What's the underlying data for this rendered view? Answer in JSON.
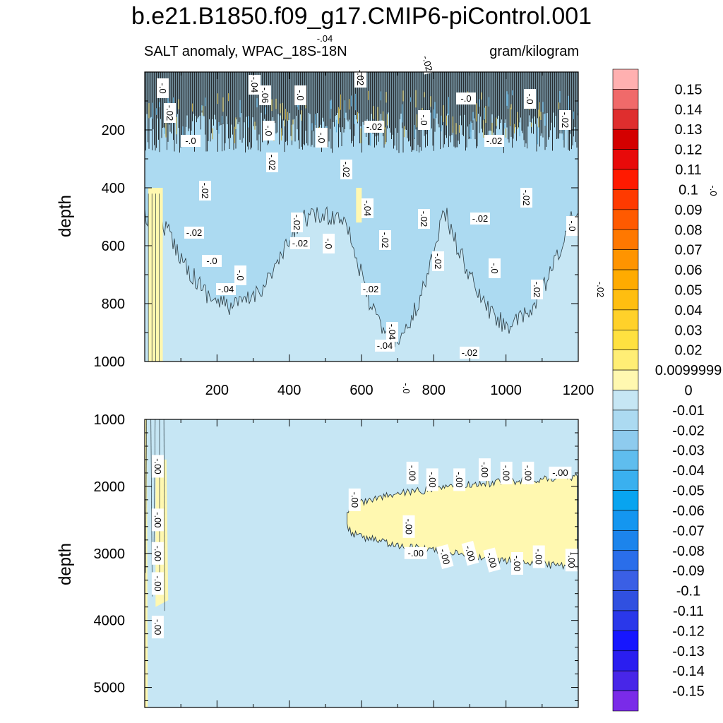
{
  "title": "b.e21.B1850.f09_g17.CMIP6-piControl.001",
  "subtitle_left": "SALT anomaly, WPAC_18S-18N",
  "subtitle_right": "gram/kilogram",
  "chart_data": [
    {
      "type": "heatmap",
      "panel": "upper",
      "ylabel": "depth",
      "xlabel": "",
      "xlim": [
        0,
        1200
      ],
      "ylim": [
        1000,
        0
      ],
      "xticks": [
        200,
        400,
        600,
        800,
        1000,
        1200
      ],
      "yticks": [
        200,
        400,
        600,
        800,
        1000
      ],
      "contour_labels": [
        "-.0",
        "-.02",
        "-.0",
        "-.02",
        "-.02",
        "-.0",
        "-.04",
        "-.0",
        "-.02",
        "-.04",
        "-.06",
        "-.0",
        "-.02",
        "-.02",
        "-.0",
        "-.02",
        "-.0",
        "-.04",
        "-.0",
        "-.02",
        "-.02",
        "-.04",
        "-.02",
        "-.02",
        "-.04",
        "-.02",
        "-.04",
        "-.0",
        "-.0",
        "-.02",
        "-.02",
        "-.02",
        "-.0",
        "-.02",
        "-.02",
        "-.02",
        "-.0",
        "-.02",
        "-.0",
        "-.02",
        "-.02",
        "-.0",
        "-.02",
        "-.0",
        "-.02",
        "-.0",
        "-.02"
      ]
    },
    {
      "type": "heatmap",
      "panel": "lower",
      "ylabel": "depth",
      "xlabel": "",
      "xlim": [
        0,
        1200
      ],
      "ylim": [
        5300,
        1000
      ],
      "yticks": [
        1000,
        2000,
        3000,
        4000,
        5000
      ],
      "contour_labels": [
        "-.00",
        "-.00",
        "-.00",
        "-.00",
        "-.00",
        "-.00",
        "-.00",
        "-.00",
        "-.00",
        "-.00",
        "-.00",
        "-.00",
        "-.00",
        "-.00",
        "-.00",
        "-.00",
        "-.00",
        "-.00",
        "-.00",
        "-.00",
        "-.00"
      ]
    }
  ],
  "colorbar": {
    "levels": [
      "0.15",
      "0.14",
      "0.13",
      "0.12",
      "0.11",
      "0.1",
      "0.09",
      "0.08",
      "0.07",
      "0.06",
      "0.05",
      "0.04",
      "0.03",
      "0.02",
      "0.0099999",
      "0",
      "-0.01",
      "-0.02",
      "-0.03",
      "-0.04",
      "-0.05",
      "-0.06",
      "-0.07",
      "-0.08",
      "-0.09",
      "-0.1",
      "-0.11",
      "-0.12",
      "-0.13",
      "-0.14",
      "-0.15"
    ],
    "colors": [
      "#ffb0b0",
      "#f06a6a",
      "#df2e2e",
      "#d40000",
      "#e80a0a",
      "#ff1a00",
      "#ff3a00",
      "#ff5a00",
      "#ff7800",
      "#ff9400",
      "#ffab00",
      "#ffbe10",
      "#ffd12a",
      "#ffe140",
      "#ffee75",
      "#fff8b0",
      "#c6e6f4",
      "#acdaf1",
      "#8ecbee",
      "#5fbdee",
      "#3ab0ef",
      "#08a4f0",
      "#1496f0",
      "#1c84ec",
      "#2a6eea",
      "#3a5fe5",
      "#3050e0",
      "#2a38ea",
      "#1616ff",
      "#2a1ef0",
      "#4826e8",
      "#7a2be8"
    ]
  },
  "colors": {
    "fill_light_blue": "#c6e6f4",
    "fill_mid_blue": "#acdaf1",
    "fill_light_yellow": "#fff8b0",
    "contour_line": "#000000"
  }
}
